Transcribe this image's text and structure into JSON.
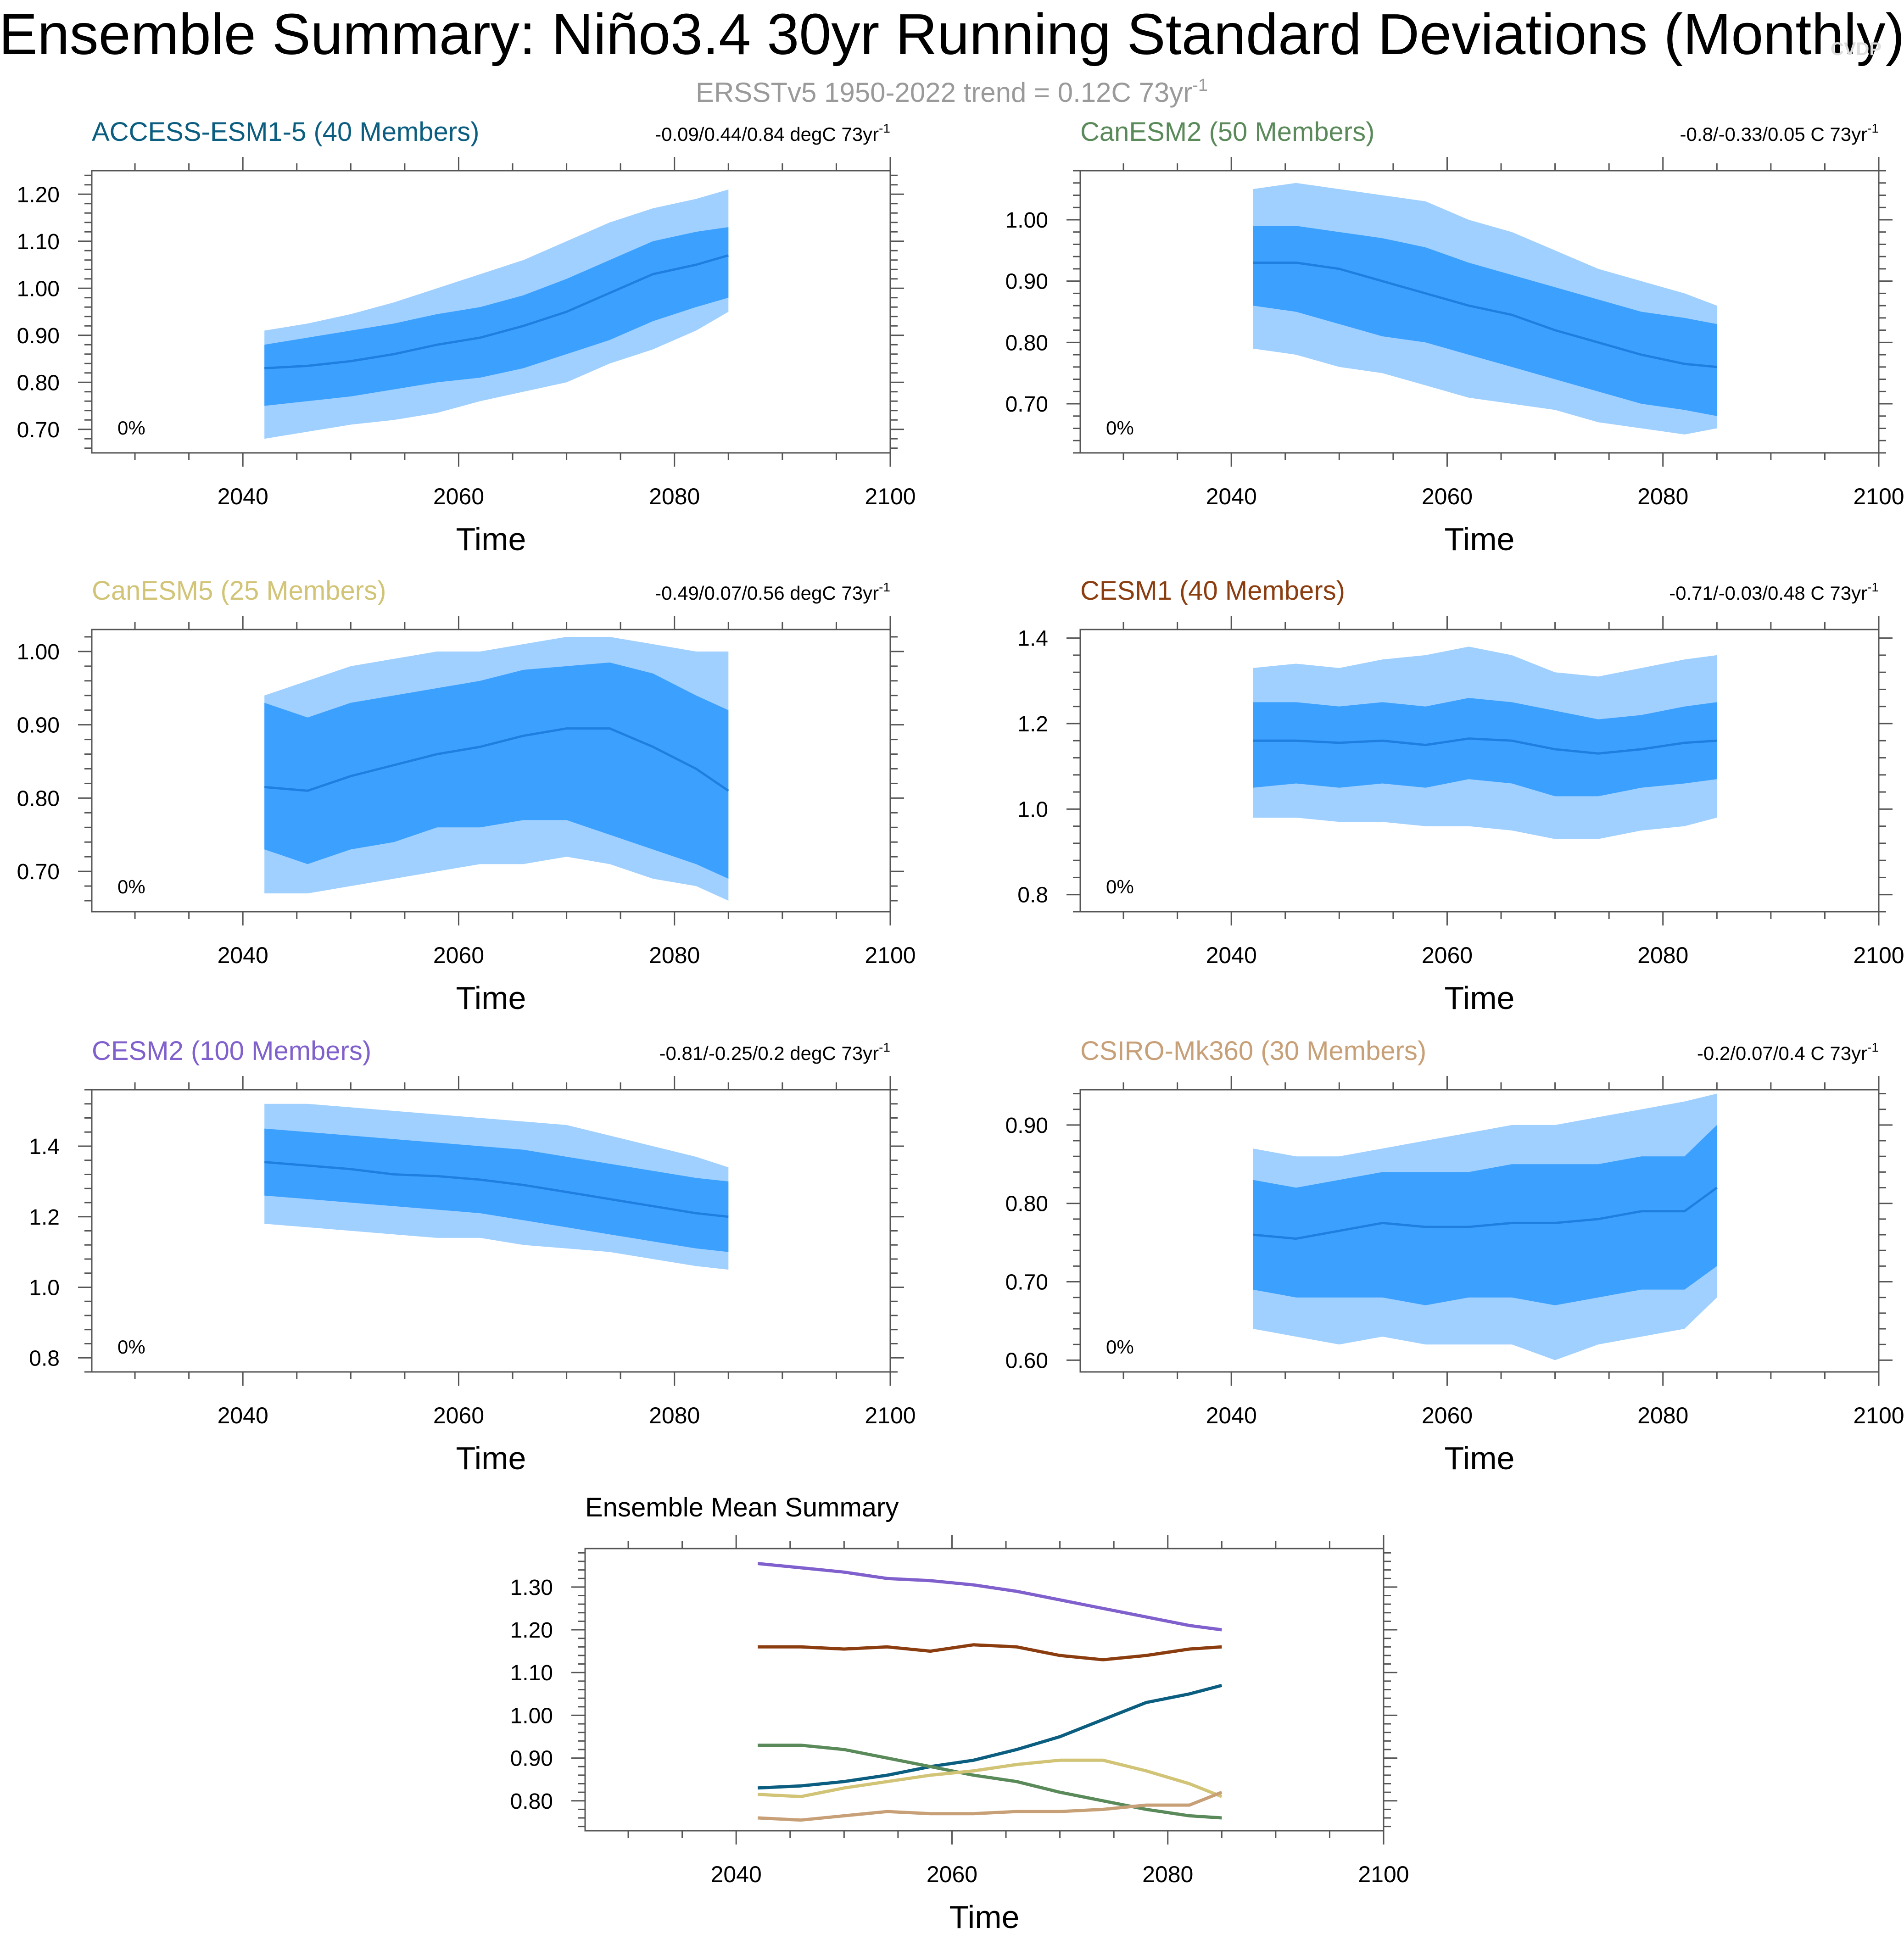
{
  "title": "Ensemble Summary: Niño3.4 30yr Running Standard Deviations (Monthly)",
  "subtitle": {
    "text": "ERSSTv5 1950-2022 trend = 0.12C 73yr",
    "sup": "-1"
  },
  "watermark": "CVDP",
  "colors": {
    "outer_band": "#a0d0ff",
    "inner_band": "#3ca0ff",
    "mean_line": "#1f7fe0",
    "subtitle": "#9a9a9a",
    "axis": "#555555"
  },
  "chart_data": [
    {
      "type": "area",
      "id": "access",
      "title": "ACCESS-ESM1-5 (40 Members)",
      "title_color": "#0b5e80",
      "trend_label": "-0.09/0.44/0.84 degC 73yr",
      "trend_sup": "-1",
      "corner_label": "0%",
      "xlabel": "Time",
      "xlim": [
        2026,
        2100
      ],
      "xticks": [
        2040,
        2060,
        2080,
        2100
      ],
      "ylim": [
        0.65,
        1.25
      ],
      "yticks": [
        0.7,
        0.8,
        0.9,
        1.0,
        1.1,
        1.2
      ],
      "ytick_labels": [
        "0.70",
        "0.80",
        "0.90",
        "1.00",
        "1.10",
        "1.20"
      ],
      "x": [
        2042,
        2046,
        2050,
        2054,
        2058,
        2062,
        2066,
        2070,
        2074,
        2078,
        2082,
        2085
      ],
      "mean": [
        0.83,
        0.835,
        0.845,
        0.86,
        0.88,
        0.895,
        0.92,
        0.95,
        0.99,
        1.03,
        1.05,
        1.07
      ],
      "p25": [
        0.75,
        0.76,
        0.77,
        0.785,
        0.8,
        0.81,
        0.83,
        0.86,
        0.89,
        0.93,
        0.96,
        0.98
      ],
      "p75": [
        0.88,
        0.895,
        0.91,
        0.925,
        0.945,
        0.96,
        0.985,
        1.02,
        1.06,
        1.1,
        1.12,
        1.13
      ],
      "min": [
        0.68,
        0.695,
        0.71,
        0.72,
        0.735,
        0.76,
        0.78,
        0.8,
        0.84,
        0.87,
        0.91,
        0.95
      ],
      "max": [
        0.91,
        0.925,
        0.945,
        0.97,
        1.0,
        1.03,
        1.06,
        1.1,
        1.14,
        1.17,
        1.19,
        1.21
      ]
    },
    {
      "type": "area",
      "id": "canesm2",
      "title": "CanESM2 (50 Members)",
      "title_color": "#5a8a5a",
      "trend_label": "-0.8/-0.33/0.05 C 73yr",
      "trend_sup": "-1",
      "corner_label": "0%",
      "xlabel": "Time",
      "xlim": [
        2026,
        2100
      ],
      "xticks": [
        2040,
        2060,
        2080,
        2100
      ],
      "ylim": [
        0.62,
        1.08
      ],
      "yticks": [
        0.7,
        0.8,
        0.9,
        1.0
      ],
      "ytick_labels": [
        "0.70",
        "0.80",
        "0.90",
        "1.00"
      ],
      "x": [
        2042,
        2046,
        2050,
        2054,
        2058,
        2062,
        2066,
        2070,
        2074,
        2078,
        2082,
        2085
      ],
      "mean": [
        0.93,
        0.93,
        0.92,
        0.9,
        0.88,
        0.86,
        0.845,
        0.82,
        0.8,
        0.78,
        0.765,
        0.76
      ],
      "p25": [
        0.86,
        0.85,
        0.83,
        0.81,
        0.8,
        0.78,
        0.76,
        0.74,
        0.72,
        0.7,
        0.69,
        0.68
      ],
      "p75": [
        0.99,
        0.99,
        0.98,
        0.97,
        0.955,
        0.93,
        0.91,
        0.89,
        0.87,
        0.85,
        0.84,
        0.83
      ],
      "min": [
        0.79,
        0.78,
        0.76,
        0.75,
        0.73,
        0.71,
        0.7,
        0.69,
        0.67,
        0.66,
        0.65,
        0.66
      ],
      "max": [
        1.05,
        1.06,
        1.05,
        1.04,
        1.03,
        1.0,
        0.98,
        0.95,
        0.92,
        0.9,
        0.88,
        0.86
      ]
    },
    {
      "type": "area",
      "id": "canesm5",
      "title": "CanESM5 (25 Members)",
      "title_color": "#d2c477",
      "trend_label": "-0.49/0.07/0.56 degC 73yr",
      "trend_sup": "-1",
      "corner_label": "0%",
      "xlabel": "Time",
      "xlim": [
        2026,
        2100
      ],
      "xticks": [
        2040,
        2060,
        2080,
        2100
      ],
      "ylim": [
        0.645,
        1.03
      ],
      "yticks": [
        0.7,
        0.8,
        0.9,
        1.0
      ],
      "ytick_labels": [
        "0.70",
        "0.80",
        "0.90",
        "1.00"
      ],
      "x": [
        2042,
        2046,
        2050,
        2054,
        2058,
        2062,
        2066,
        2070,
        2074,
        2078,
        2082,
        2085
      ],
      "mean": [
        0.815,
        0.81,
        0.83,
        0.845,
        0.86,
        0.87,
        0.885,
        0.895,
        0.895,
        0.87,
        0.84,
        0.81
      ],
      "p25": [
        0.73,
        0.71,
        0.73,
        0.74,
        0.76,
        0.76,
        0.77,
        0.77,
        0.75,
        0.73,
        0.71,
        0.69
      ],
      "p75": [
        0.93,
        0.91,
        0.93,
        0.94,
        0.95,
        0.96,
        0.975,
        0.98,
        0.985,
        0.97,
        0.94,
        0.92
      ],
      "min": [
        0.67,
        0.67,
        0.68,
        0.69,
        0.7,
        0.71,
        0.71,
        0.72,
        0.71,
        0.69,
        0.68,
        0.66
      ],
      "max": [
        0.94,
        0.96,
        0.98,
        0.99,
        1.0,
        1.0,
        1.01,
        1.02,
        1.02,
        1.01,
        1.0,
        1.0
      ]
    },
    {
      "type": "area",
      "id": "cesm1",
      "title": "CESM1 (40 Members)",
      "title_color": "#8b3d10",
      "trend_label": "-0.71/-0.03/0.48 C 73yr",
      "trend_sup": "-1",
      "corner_label": "0%",
      "xlabel": "Time",
      "xlim": [
        2026,
        2100
      ],
      "xticks": [
        2040,
        2060,
        2080,
        2100
      ],
      "ylim": [
        0.76,
        1.42
      ],
      "yticks": [
        0.8,
        1.0,
        1.2,
        1.4
      ],
      "ytick_labels": [
        "0.8",
        "1.0",
        "1.2",
        "1.4"
      ],
      "x": [
        2042,
        2046,
        2050,
        2054,
        2058,
        2062,
        2066,
        2070,
        2074,
        2078,
        2082,
        2085
      ],
      "mean": [
        1.16,
        1.16,
        1.155,
        1.16,
        1.15,
        1.165,
        1.16,
        1.14,
        1.13,
        1.14,
        1.155,
        1.16
      ],
      "p25": [
        1.05,
        1.06,
        1.05,
        1.06,
        1.05,
        1.07,
        1.06,
        1.03,
        1.03,
        1.05,
        1.06,
        1.07
      ],
      "p75": [
        1.25,
        1.25,
        1.24,
        1.25,
        1.24,
        1.26,
        1.25,
        1.23,
        1.21,
        1.22,
        1.24,
        1.25
      ],
      "min": [
        0.98,
        0.98,
        0.97,
        0.97,
        0.96,
        0.96,
        0.95,
        0.93,
        0.93,
        0.95,
        0.96,
        0.98
      ],
      "max": [
        1.33,
        1.34,
        1.33,
        1.35,
        1.36,
        1.38,
        1.36,
        1.32,
        1.31,
        1.33,
        1.35,
        1.36
      ]
    },
    {
      "type": "area",
      "id": "cesm2",
      "title": "CESM2 (100 Members)",
      "title_color": "#8060cc",
      "trend_label": "-0.81/-0.25/0.2 degC 73yr",
      "trend_sup": "-1",
      "corner_label": "0%",
      "xlabel": "Time",
      "xlim": [
        2026,
        2100
      ],
      "xticks": [
        2040,
        2060,
        2080,
        2100
      ],
      "ylim": [
        0.76,
        1.56
      ],
      "yticks": [
        0.8,
        1.0,
        1.2,
        1.4
      ],
      "ytick_labels": [
        "0.8",
        "1.0",
        "1.2",
        "1.4"
      ],
      "x": [
        2042,
        2046,
        2050,
        2054,
        2058,
        2062,
        2066,
        2070,
        2074,
        2078,
        2082,
        2085
      ],
      "mean": [
        1.355,
        1.345,
        1.335,
        1.32,
        1.315,
        1.305,
        1.29,
        1.27,
        1.25,
        1.23,
        1.21,
        1.2
      ],
      "p25": [
        1.26,
        1.25,
        1.24,
        1.23,
        1.22,
        1.21,
        1.19,
        1.17,
        1.15,
        1.13,
        1.11,
        1.1
      ],
      "p75": [
        1.45,
        1.44,
        1.43,
        1.42,
        1.41,
        1.4,
        1.39,
        1.37,
        1.35,
        1.33,
        1.31,
        1.3
      ],
      "min": [
        1.18,
        1.17,
        1.16,
        1.15,
        1.14,
        1.14,
        1.12,
        1.11,
        1.1,
        1.08,
        1.06,
        1.05
      ],
      "max": [
        1.52,
        1.52,
        1.51,
        1.5,
        1.49,
        1.48,
        1.47,
        1.46,
        1.43,
        1.4,
        1.37,
        1.34
      ]
    },
    {
      "type": "area",
      "id": "csiro",
      "title": "CSIRO-Mk360 (30 Members)",
      "title_color": "#c8a078",
      "trend_label": "-0.2/0.07/0.4 C 73yr",
      "trend_sup": "-1",
      "corner_label": "0%",
      "xlabel": "Time",
      "xlim": [
        2026,
        2100
      ],
      "xticks": [
        2040,
        2060,
        2080,
        2100
      ],
      "ylim": [
        0.585,
        0.945
      ],
      "yticks": [
        0.6,
        0.7,
        0.8,
        0.9
      ],
      "ytick_labels": [
        "0.60",
        "0.70",
        "0.80",
        "0.90"
      ],
      "x": [
        2042,
        2046,
        2050,
        2054,
        2058,
        2062,
        2066,
        2070,
        2074,
        2078,
        2082,
        2085
      ],
      "mean": [
        0.76,
        0.755,
        0.765,
        0.775,
        0.77,
        0.77,
        0.775,
        0.775,
        0.78,
        0.79,
        0.79,
        0.82
      ],
      "p25": [
        0.69,
        0.68,
        0.68,
        0.68,
        0.67,
        0.68,
        0.68,
        0.67,
        0.68,
        0.69,
        0.69,
        0.72
      ],
      "p75": [
        0.83,
        0.82,
        0.83,
        0.84,
        0.84,
        0.84,
        0.85,
        0.85,
        0.85,
        0.86,
        0.86,
        0.9
      ],
      "min": [
        0.64,
        0.63,
        0.62,
        0.63,
        0.62,
        0.62,
        0.62,
        0.6,
        0.62,
        0.63,
        0.64,
        0.68
      ],
      "max": [
        0.87,
        0.86,
        0.86,
        0.87,
        0.88,
        0.89,
        0.9,
        0.9,
        0.91,
        0.92,
        0.93,
        0.94
      ]
    },
    {
      "type": "line",
      "id": "summary",
      "title": "Ensemble Mean Summary",
      "xlabel": "Time",
      "xlim": [
        2026,
        2100
      ],
      "xticks": [
        2040,
        2060,
        2080,
        2100
      ],
      "ylim": [
        0.73,
        1.39
      ],
      "yticks": [
        0.8,
        0.9,
        1.0,
        1.1,
        1.2,
        1.3
      ],
      "ytick_labels": [
        "0.80",
        "0.90",
        "1.00",
        "1.10",
        "1.20",
        "1.30"
      ],
      "x": [
        2042,
        2046,
        2050,
        2054,
        2058,
        2062,
        2066,
        2070,
        2074,
        2078,
        2082,
        2085
      ],
      "series": [
        {
          "name": "ACCESS-ESM1-5",
          "color": "#0b5e80",
          "values": [
            0.83,
            0.835,
            0.845,
            0.86,
            0.88,
            0.895,
            0.92,
            0.95,
            0.99,
            1.03,
            1.05,
            1.07
          ]
        },
        {
          "name": "CanESM2",
          "color": "#5a8a5a",
          "values": [
            0.93,
            0.93,
            0.92,
            0.9,
            0.88,
            0.86,
            0.845,
            0.82,
            0.8,
            0.78,
            0.765,
            0.76
          ]
        },
        {
          "name": "CanESM5",
          "color": "#d2c477",
          "values": [
            0.815,
            0.81,
            0.83,
            0.845,
            0.86,
            0.87,
            0.885,
            0.895,
            0.895,
            0.87,
            0.84,
            0.81
          ]
        },
        {
          "name": "CESM1",
          "color": "#8b3d10",
          "values": [
            1.16,
            1.16,
            1.155,
            1.16,
            1.15,
            1.165,
            1.16,
            1.14,
            1.13,
            1.14,
            1.155,
            1.16
          ]
        },
        {
          "name": "CESM2",
          "color": "#8060cc",
          "values": [
            1.355,
            1.345,
            1.335,
            1.32,
            1.315,
            1.305,
            1.29,
            1.27,
            1.25,
            1.23,
            1.21,
            1.2
          ]
        },
        {
          "name": "CSIRO-Mk360",
          "color": "#c8a078",
          "values": [
            0.76,
            0.755,
            0.765,
            0.775,
            0.77,
            0.77,
            0.775,
            0.775,
            0.78,
            0.79,
            0.79,
            0.82
          ]
        }
      ]
    }
  ]
}
